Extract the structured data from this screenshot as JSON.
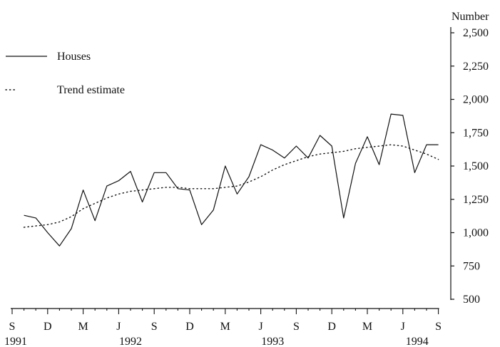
{
  "chart_data": {
    "type": "line",
    "title": "",
    "xlabel": "",
    "ylabel": "Number",
    "ylim": [
      500,
      2500
    ],
    "y_ticks": [
      "2,500",
      "2,250",
      "2,000",
      "1,750",
      "1,500",
      "1,250",
      "1,000",
      "750",
      "500"
    ],
    "y_tick_values": [
      2500,
      2250,
      2000,
      1750,
      1500,
      1250,
      1000,
      750,
      500
    ],
    "x_month_labels": [
      "S",
      "D",
      "M",
      "J",
      "S",
      "D",
      "M",
      "J",
      "S",
      "D",
      "M",
      "J",
      "S"
    ],
    "x_month_index": [
      0,
      3,
      6,
      9,
      12,
      15,
      18,
      21,
      24,
      27,
      30,
      33,
      36
    ],
    "x_year_labels": [
      {
        "label": "1991",
        "index": 0.3
      },
      {
        "label": "1992",
        "index": 10
      },
      {
        "label": "1993",
        "index": 22
      },
      {
        "label": "1994",
        "index": 34.2
      }
    ],
    "grid": false,
    "legend_position": "top-left",
    "legend": [
      {
        "name": "Houses",
        "style": "solid"
      },
      {
        "name": "Trend estimate",
        "style": "dotted"
      }
    ],
    "x_start": "1991-09",
    "series": [
      {
        "name": "Houses",
        "style": "solid",
        "x_index": [
          1,
          2,
          3,
          4,
          5,
          6,
          7,
          8,
          9,
          10,
          11,
          12,
          13,
          14,
          15,
          16,
          17,
          18,
          19,
          20,
          21,
          22,
          23,
          24,
          25,
          26,
          27,
          28,
          29,
          30,
          31,
          32,
          33,
          34,
          35,
          36
        ],
        "values": [
          1130,
          1110,
          1000,
          900,
          1030,
          1320,
          1090,
          1350,
          1390,
          1460,
          1230,
          1450,
          1450,
          1330,
          1320,
          1060,
          1170,
          1500,
          1290,
          1420,
          1660,
          1620,
          1560,
          1650,
          1560,
          1730,
          1650,
          1110,
          1520,
          1720,
          1510,
          1890,
          1880,
          1450,
          1660,
          1660
        ]
      },
      {
        "name": "Trend estimate",
        "style": "dotted",
        "x_index": [
          1,
          2,
          3,
          4,
          5,
          6,
          7,
          8,
          9,
          10,
          11,
          12,
          13,
          14,
          15,
          16,
          17,
          18,
          19,
          20,
          21,
          22,
          23,
          24,
          25,
          26,
          27,
          28,
          29,
          30,
          31,
          32,
          33,
          34,
          35,
          36
        ],
        "values": [
          1040,
          1050,
          1060,
          1080,
          1120,
          1180,
          1220,
          1260,
          1290,
          1310,
          1320,
          1330,
          1340,
          1340,
          1330,
          1330,
          1330,
          1340,
          1350,
          1380,
          1420,
          1470,
          1510,
          1540,
          1570,
          1590,
          1600,
          1610,
          1630,
          1640,
          1650,
          1660,
          1650,
          1620,
          1590,
          1550
        ]
      }
    ]
  }
}
